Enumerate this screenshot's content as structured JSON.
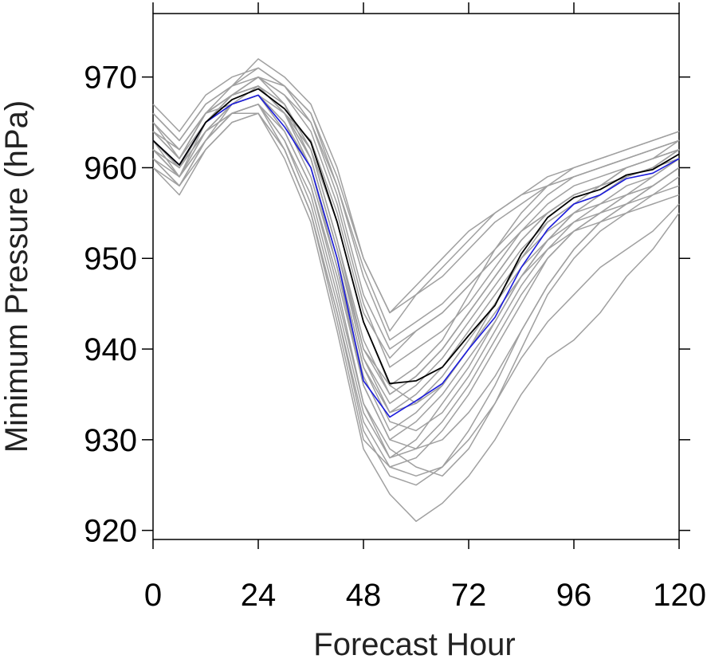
{
  "chart_data": {
    "type": "line",
    "title": "",
    "xlabel": "Forecast Hour",
    "ylabel": "Minimum Pressure (hPa)",
    "xlim": [
      0,
      120
    ],
    "ylim": [
      919,
      977
    ],
    "xticks": [
      0,
      24,
      48,
      72,
      96,
      120
    ],
    "yticks": [
      920,
      930,
      940,
      950,
      960,
      970
    ],
    "x": [
      0,
      6,
      12,
      18,
      24,
      30,
      36,
      42,
      48,
      54,
      60,
      66,
      72,
      78,
      84,
      90,
      96,
      102,
      108,
      114,
      120
    ],
    "grid": false,
    "legend": "none",
    "colors": {
      "members": "#a0a0a0",
      "mean": "#000000",
      "control": "#1a1adc",
      "axis": "#000000"
    },
    "series": [
      {
        "role": "mean",
        "color": "#000000",
        "values": [
          963,
          960.3,
          965,
          967.5,
          968.7,
          966.5,
          962.8,
          954,
          943,
          936.2,
          936.5,
          938,
          941.5,
          944.8,
          950.5,
          954.5,
          956.7,
          957.6,
          959.2,
          959.8,
          961.5
        ]
      },
      {
        "role": "control",
        "color": "#1a1adc",
        "values": [
          963,
          960.3,
          965,
          967,
          968,
          964.5,
          960,
          950,
          936.5,
          932.5,
          934.3,
          936.2,
          940,
          943.5,
          949,
          953.2,
          956,
          957,
          958.8,
          959.4,
          961
        ]
      },
      {
        "role": "member",
        "values": [
          964,
          961,
          966,
          968,
          969,
          967,
          962,
          952,
          941,
          935,
          937,
          940,
          944,
          948,
          952,
          955,
          957,
          958,
          959,
          960,
          962
        ]
      },
      {
        "role": "member",
        "values": [
          962,
          959,
          964,
          966,
          967,
          964,
          958,
          948,
          936,
          930,
          932,
          935,
          939,
          943,
          948,
          952,
          955,
          957,
          959,
          960,
          961
        ]
      },
      {
        "role": "member",
        "values": [
          966,
          963,
          967,
          969,
          971,
          969,
          966,
          958,
          948,
          941,
          943,
          945,
          948,
          951,
          954,
          957,
          959,
          960,
          961,
          962,
          963
        ]
      },
      {
        "role": "member",
        "values": [
          960,
          957,
          962,
          965,
          966,
          962,
          955,
          944,
          932,
          927,
          928,
          931,
          935,
          940,
          945,
          950,
          953,
          955,
          957,
          958,
          960
        ]
      },
      {
        "role": "member",
        "values": [
          963,
          960,
          965,
          968,
          970,
          968,
          964,
          956,
          945,
          938,
          940,
          942,
          945,
          949,
          953,
          956,
          958,
          959,
          960,
          961,
          962
        ]
      },
      {
        "role": "member",
        "values": [
          961,
          958,
          963,
          967,
          968,
          965,
          960,
          950,
          938,
          932,
          931,
          933,
          937,
          942,
          947,
          951,
          954,
          956,
          958,
          959,
          961
        ]
      },
      {
        "role": "member",
        "values": [
          965,
          962,
          966,
          967,
          968,
          966,
          963,
          955,
          944,
          939,
          942,
          944,
          947,
          950,
          953,
          955,
          957,
          958,
          960,
          961,
          962
        ]
      },
      {
        "role": "member",
        "values": [
          962,
          960,
          964,
          967,
          969,
          967,
          961,
          951,
          939,
          934,
          936,
          939,
          943,
          947,
          951,
          954,
          956,
          957,
          959,
          960,
          962
        ]
      },
      {
        "role": "member",
        "values": [
          964,
          961,
          966,
          969,
          972,
          970,
          967,
          960,
          950,
          944,
          947,
          950,
          953,
          955,
          957,
          958,
          959,
          960,
          961,
          962,
          963
        ]
      },
      {
        "role": "member",
        "values": [
          963,
          959,
          964,
          966,
          967,
          963,
          957,
          946,
          934,
          928,
          929,
          932,
          936,
          941,
          946,
          950,
          953,
          955,
          957,
          959,
          961
        ]
      },
      {
        "role": "member",
        "values": [
          961,
          958,
          962,
          965,
          966,
          961,
          954,
          942,
          929,
          924,
          921,
          923,
          926,
          930,
          935,
          939,
          941,
          944,
          948,
          951,
          955
        ]
      },
      {
        "role": "member",
        "values": [
          962,
          959,
          963,
          966,
          967,
          962,
          955,
          943,
          930,
          927,
          926,
          927,
          930,
          934,
          939,
          943,
          946,
          949,
          951,
          953,
          956
        ]
      },
      {
        "role": "member",
        "values": [
          965,
          961,
          965,
          968,
          970,
          968,
          965,
          958,
          949,
          942,
          946,
          949,
          952,
          955,
          957,
          959,
          960,
          961,
          962,
          963,
          964
        ]
      },
      {
        "role": "member",
        "values": [
          964,
          962,
          966,
          968,
          969,
          966,
          962,
          954,
          943,
          936,
          934,
          936,
          940,
          945,
          950,
          954,
          956,
          958,
          960,
          961,
          963
        ]
      },
      {
        "role": "member",
        "values": [
          963,
          960,
          964,
          967,
          968,
          964,
          958,
          947,
          934,
          929,
          927,
          926,
          929,
          934,
          940,
          946,
          950,
          953,
          955,
          957,
          959
        ]
      },
      {
        "role": "member",
        "values": [
          962,
          959,
          965,
          968,
          969,
          966,
          960,
          949,
          937,
          931,
          933,
          936,
          940,
          944,
          948,
          951,
          953,
          954,
          955,
          956,
          957
        ]
      },
      {
        "role": "member",
        "values": [
          966,
          963,
          967,
          969,
          970,
          967,
          962,
          952,
          940,
          936,
          938,
          941,
          946,
          951,
          955,
          958,
          960,
          961,
          962,
          963,
          964
        ]
      },
      {
        "role": "member",
        "values": [
          960,
          958,
          963,
          966,
          967,
          963,
          956,
          945,
          933,
          928,
          930,
          934,
          938,
          943,
          948,
          952,
          955,
          957,
          959,
          960,
          961
        ]
      },
      {
        "role": "member",
        "values": [
          964,
          961,
          966,
          968,
          969,
          966,
          961,
          951,
          939,
          933,
          935,
          938,
          942,
          946,
          950,
          953,
          955,
          956,
          957,
          958,
          960
        ]
      },
      {
        "role": "member",
        "values": [
          963,
          960,
          965,
          967,
          968,
          965,
          959,
          949,
          936,
          930,
          929,
          930,
          933,
          937,
          942,
          947,
          951,
          954,
          956,
          958,
          960
        ]
      },
      {
        "role": "member",
        "values": [
          965,
          962,
          966,
          968,
          970,
          969,
          966,
          959,
          950,
          944,
          946,
          948,
          951,
          954,
          956,
          958,
          959,
          960,
          961,
          962,
          963
        ]
      },
      {
        "role": "member",
        "values": [
          962,
          960,
          964,
          967,
          968,
          965,
          960,
          950,
          938,
          933,
          934,
          937,
          941,
          945,
          949,
          952,
          954,
          955,
          956,
          957,
          958
        ]
      },
      {
        "role": "member",
        "values": [
          967,
          964,
          968,
          970,
          971,
          969,
          965,
          957,
          946,
          940,
          942,
          944,
          947,
          950,
          953,
          955,
          957,
          958,
          959,
          960,
          962
        ]
      },
      {
        "role": "member",
        "values": [
          961,
          959,
          963,
          966,
          966,
          962,
          955,
          944,
          931,
          926,
          925,
          927,
          931,
          936,
          942,
          947,
          951,
          954,
          956,
          958,
          960
        ]
      },
      {
        "role": "member",
        "values": [
          963,
          960,
          965,
          968,
          969,
          966,
          961,
          951,
          940,
          935,
          937,
          940,
          944,
          948,
          952,
          955,
          957,
          958,
          960,
          961,
          962
        ]
      }
    ]
  }
}
